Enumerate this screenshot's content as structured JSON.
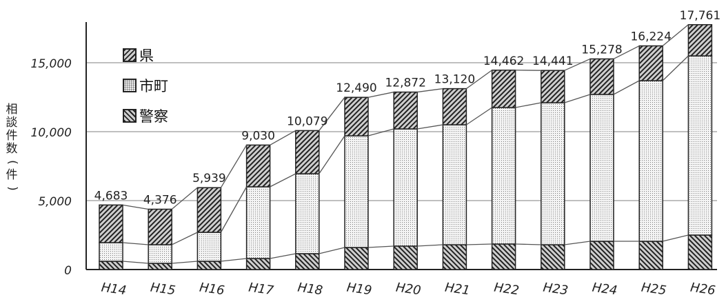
{
  "chart_data": {
    "type": "bar",
    "stacked": true,
    "categories": [
      "H14",
      "H15",
      "H16",
      "H17",
      "H18",
      "H19",
      "H20",
      "H21",
      "H22",
      "H23",
      "H24",
      "H25",
      "H26"
    ],
    "series": [
      {
        "name": "警察",
        "values": [
          600,
          450,
          600,
          800,
          1150,
          1600,
          1700,
          1800,
          1850,
          1800,
          2050,
          2050,
          2500
        ]
      },
      {
        "name": "市町",
        "values": [
          1350,
          1350,
          2100,
          5200,
          5800,
          8100,
          8500,
          8700,
          9900,
          10300,
          10650,
          11650,
          13000
        ]
      },
      {
        "name": "県",
        "values": [
          2733,
          2576,
          3239,
          3030,
          3129,
          2790,
          2672,
          2620,
          2712,
          2341,
          2578,
          2524,
          2261
        ]
      }
    ],
    "totals": [
      4683,
      4376,
      5939,
      9030,
      10079,
      12490,
      12872,
      13120,
      14462,
      14441,
      15278,
      16224,
      17761
    ],
    "total_labels": [
      "4,683",
      "4,376",
      "5,939",
      "9,030",
      "10,079",
      "12,490",
      "12,872",
      "13,120",
      "14,462",
      "14,441",
      "15,278",
      "16,224",
      "17,761"
    ],
    "yticks": [
      0,
      5000,
      10000,
      15000
    ],
    "ytick_labels": [
      "0",
      "5,000",
      "10,000",
      "15,000"
    ],
    "ylim": [
      0,
      18000
    ],
    "ylabel": "相談件数(件)",
    "ylabel_chars": [
      "相",
      "談",
      "件",
      "数",
      "(",
      "件",
      ")"
    ],
    "xlabel": "",
    "grid": true,
    "legend_position": "top-left",
    "colors": {
      "axis": "#222222",
      "grid": "#aaaaaa",
      "line": "#555555",
      "hatch_bg": "#cfcfcf",
      "hatch_fg": "#222222"
    }
  },
  "legend": {
    "items": [
      {
        "label": "県",
        "pattern": "pref"
      },
      {
        "label": "市町",
        "pattern": "city"
      },
      {
        "label": "警察",
        "pattern": "police"
      }
    ]
  }
}
